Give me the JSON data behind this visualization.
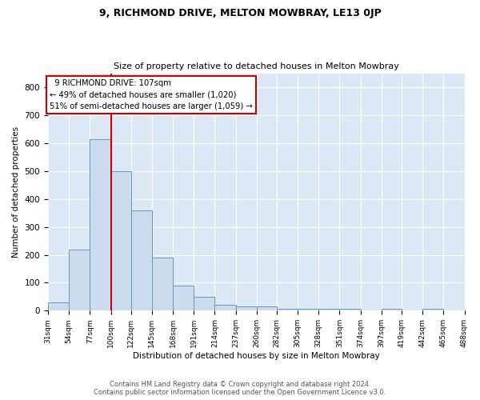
{
  "title1": "9, RICHMOND DRIVE, MELTON MOWBRAY, LE13 0JP",
  "title2": "Size of property relative to detached houses in Melton Mowbray",
  "xlabel": "Distribution of detached houses by size in Melton Mowbray",
  "ylabel": "Number of detached properties",
  "annotation_title": "  9 RICHMOND DRIVE: 107sqm",
  "annotation_line1": "← 49% of detached houses are smaller (1,020)",
  "annotation_line2": "51% of semi-detached houses are larger (1,059) →",
  "footer1": "Contains HM Land Registry data © Crown copyright and database right 2024.",
  "footer2": "Contains public sector information licensed under the Open Government Licence v3.0.",
  "bar_color": "#ccdcee",
  "bar_edge_color": "#6699bb",
  "background_color": "#dce8f5",
  "vline_x": 100,
  "vline_color": "#cc0000",
  "bin_edges": [
    31,
    54,
    77,
    100,
    122,
    145,
    168,
    191,
    214,
    237,
    260,
    282,
    305,
    328,
    351,
    374,
    397,
    419,
    442,
    465,
    488
  ],
  "bar_heights": [
    30,
    220,
    615,
    500,
    360,
    190,
    90,
    50,
    20,
    15,
    15,
    8,
    8,
    8,
    8,
    0,
    7,
    0,
    7,
    0
  ],
  "ylim": [
    0,
    850
  ],
  "yticks": [
    0,
    100,
    200,
    300,
    400,
    500,
    600,
    700,
    800
  ],
  "annotation_box_color": "#ffffff",
  "annotation_box_edge": "#cc0000",
  "title1_fontsize": 9,
  "title2_fontsize": 8
}
